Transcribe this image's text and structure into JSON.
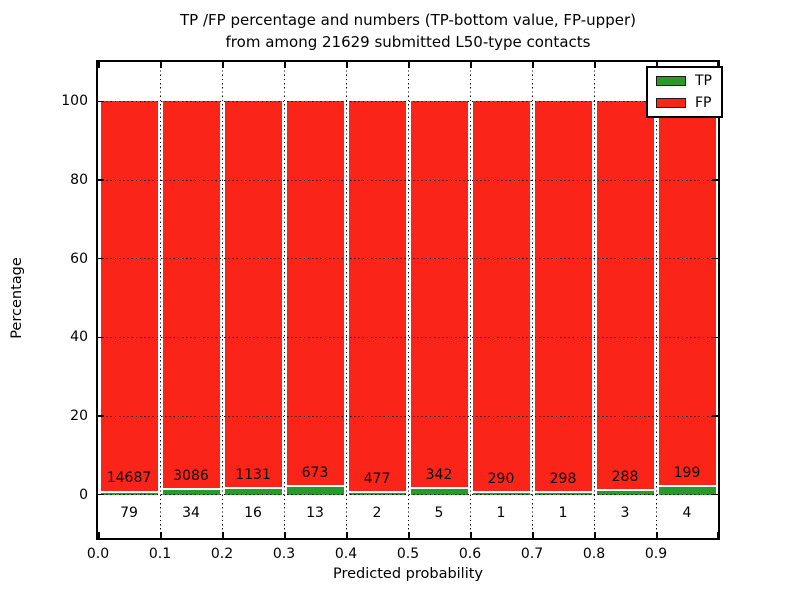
{
  "figure": {
    "title_line1": "TP /FP percentage and numbers (TP-bottom value, FP-upper)",
    "title_line2": "from among 21629 submitted L50-type contacts"
  },
  "chart_data": {
    "type": "bar",
    "stacked": true,
    "normalized_to_percent": true,
    "title": "TP /FP percentage and numbers (TP-bottom value, FP-upper) from among 21629 submitted L50-type contacts",
    "total_submitted": 21629,
    "xlabel": "Predicted probability",
    "ylabel": "Percentage",
    "xlim": [
      0.0,
      1.0
    ],
    "ylim": [
      -11,
      110
    ],
    "bin_width": 0.1,
    "x_tick_labels": [
      "0.0",
      "0.1",
      "0.2",
      "0.3",
      "0.4",
      "0.5",
      "0.6",
      "0.7",
      "0.8",
      "0.9"
    ],
    "y_ticks": [
      0,
      20,
      40,
      60,
      80,
      100
    ],
    "y_tick_labels": [
      "0",
      "20",
      "40",
      "60",
      "80",
      "100"
    ],
    "grid": "dotted",
    "legend_position": "upper-right",
    "series": [
      {
        "name": "TP",
        "color": "#28992b",
        "position": "bottom",
        "counts": [
          79,
          34,
          16,
          13,
          2,
          5,
          1,
          1,
          3,
          4
        ]
      },
      {
        "name": "FP",
        "color": "#fb2419",
        "position": "top",
        "counts": [
          14687,
          3086,
          1131,
          673,
          477,
          342,
          290,
          298,
          288,
          199
        ]
      }
    ],
    "annotation_scheme": "TP count below axis, FP count above TP strip, per bar"
  }
}
